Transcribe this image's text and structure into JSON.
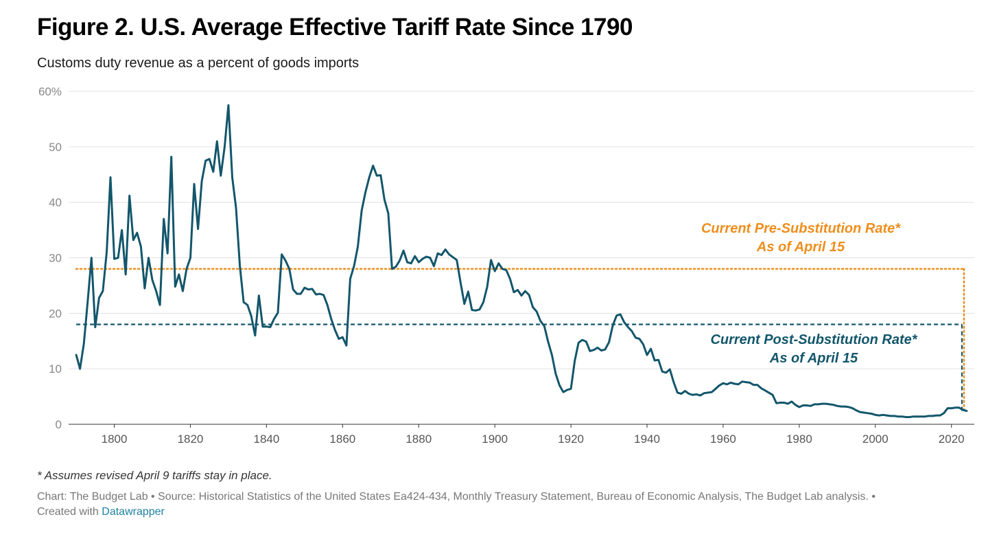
{
  "header": {
    "title": "Figure 2. U.S. Average Effective Tariff Rate Since 1790",
    "subtitle": "Customs duty revenue as a percent of goods imports"
  },
  "footer": {
    "note": "* Assumes revised April 9 tariffs stay in place.",
    "source": "Chart: The Budget Lab • Source: Historical Statistics of the United States Ea424-434, Monthly Treasury Statement, Bureau of Economic Analysis, The Budget Lab analysis. •",
    "created_with": "Created with",
    "tool_link": "Datawrapper"
  },
  "colors": {
    "line": "#13566b",
    "pre_substitution": "#ee8e1c",
    "post_substitution": "#13566b",
    "grid": "#e0e0e0",
    "tick_label": "#888888"
  },
  "chart_data": {
    "type": "line",
    "title": "Figure 2. U.S. Average Effective Tariff Rate Since 1790",
    "subtitle": "Customs duty revenue as a percent of goods imports",
    "xlabel": "",
    "ylabel": "",
    "xlim": [
      1788,
      2026
    ],
    "ylim": [
      0,
      60
    ],
    "x_ticks": [
      1800,
      1820,
      1840,
      1860,
      1880,
      1900,
      1920,
      1940,
      1960,
      1980,
      2000,
      2020
    ],
    "y_ticks": [
      0,
      10,
      20,
      30,
      40,
      50,
      60
    ],
    "y_tick_labels": [
      "0",
      "10",
      "20",
      "30",
      "40",
      "50",
      "60%"
    ],
    "grid": "horizontal",
    "series": [
      {
        "points": [
          [
            1790,
            12.5
          ],
          [
            1791,
            10.0
          ],
          [
            1792,
            14.5
          ],
          [
            1793,
            22.0
          ],
          [
            1794,
            30.0
          ],
          [
            1795,
            17.5
          ],
          [
            1796,
            22.8
          ],
          [
            1797,
            24.0
          ],
          [
            1798,
            31.0
          ],
          [
            1799,
            44.5
          ],
          [
            1800,
            29.8
          ],
          [
            1801,
            30.0
          ],
          [
            1802,
            35.0
          ],
          [
            1803,
            27.0
          ],
          [
            1804,
            41.2
          ],
          [
            1805,
            33.2
          ],
          [
            1806,
            34.5
          ],
          [
            1807,
            32.0
          ],
          [
            1808,
            24.5
          ],
          [
            1809,
            30.0
          ],
          [
            1810,
            26.0
          ],
          [
            1811,
            24.0
          ],
          [
            1812,
            21.5
          ],
          [
            1813,
            37.0
          ],
          [
            1814,
            30.8
          ],
          [
            1815,
            48.2
          ],
          [
            1816,
            24.8
          ],
          [
            1817,
            27.0
          ],
          [
            1818,
            24.0
          ],
          [
            1819,
            28.0
          ],
          [
            1820,
            30.0
          ],
          [
            1821,
            43.3
          ],
          [
            1822,
            35.2
          ],
          [
            1823,
            43.8
          ],
          [
            1824,
            47.5
          ],
          [
            1825,
            47.8
          ],
          [
            1826,
            45.5
          ],
          [
            1827,
            51.0
          ],
          [
            1828,
            44.8
          ],
          [
            1829,
            50.0
          ],
          [
            1830,
            57.5
          ],
          [
            1831,
            44.5
          ],
          [
            1832,
            39.0
          ],
          [
            1833,
            28.5
          ],
          [
            1834,
            22.0
          ],
          [
            1835,
            21.5
          ],
          [
            1836,
            19.5
          ],
          [
            1837,
            16.0
          ],
          [
            1838,
            23.2
          ],
          [
            1839,
            17.6
          ],
          [
            1840,
            17.6
          ],
          [
            1841,
            17.5
          ],
          [
            1842,
            19.0
          ],
          [
            1843,
            20.1
          ],
          [
            1844,
            30.6
          ],
          [
            1845,
            29.5
          ],
          [
            1846,
            28.0
          ],
          [
            1847,
            24.3
          ],
          [
            1848,
            23.5
          ],
          [
            1849,
            23.5
          ],
          [
            1850,
            24.6
          ],
          [
            1851,
            24.3
          ],
          [
            1852,
            24.4
          ],
          [
            1853,
            23.4
          ],
          [
            1854,
            23.5
          ],
          [
            1855,
            23.3
          ],
          [
            1856,
            21.5
          ],
          [
            1857,
            19.0
          ],
          [
            1858,
            17.0
          ],
          [
            1859,
            15.4
          ],
          [
            1860,
            15.7
          ],
          [
            1861,
            14.2
          ],
          [
            1862,
            26.2
          ],
          [
            1863,
            28.5
          ],
          [
            1864,
            32.0
          ],
          [
            1865,
            38.5
          ],
          [
            1866,
            41.8
          ],
          [
            1867,
            44.5
          ],
          [
            1868,
            46.6
          ],
          [
            1869,
            44.8
          ],
          [
            1870,
            44.9
          ],
          [
            1871,
            40.5
          ],
          [
            1872,
            38.0
          ],
          [
            1873,
            28.0
          ],
          [
            1874,
            28.4
          ],
          [
            1875,
            29.5
          ],
          [
            1876,
            31.3
          ],
          [
            1877,
            29.2
          ],
          [
            1878,
            29.0
          ],
          [
            1879,
            30.3
          ],
          [
            1880,
            29.2
          ],
          [
            1881,
            29.8
          ],
          [
            1882,
            30.2
          ],
          [
            1883,
            30.0
          ],
          [
            1884,
            28.5
          ],
          [
            1885,
            30.8
          ],
          [
            1886,
            30.5
          ],
          [
            1887,
            31.5
          ],
          [
            1888,
            30.6
          ],
          [
            1889,
            30.1
          ],
          [
            1890,
            29.6
          ],
          [
            1891,
            25.5
          ],
          [
            1892,
            21.7
          ],
          [
            1893,
            23.9
          ],
          [
            1894,
            20.6
          ],
          [
            1895,
            20.5
          ],
          [
            1896,
            20.7
          ],
          [
            1897,
            22.0
          ],
          [
            1898,
            24.8
          ],
          [
            1899,
            29.6
          ],
          [
            1900,
            27.6
          ],
          [
            1901,
            29.0
          ],
          [
            1902,
            28.0
          ],
          [
            1903,
            27.8
          ],
          [
            1904,
            26.2
          ],
          [
            1905,
            23.8
          ],
          [
            1906,
            24.2
          ],
          [
            1907,
            23.2
          ],
          [
            1908,
            24.0
          ],
          [
            1909,
            23.3
          ],
          [
            1910,
            21.1
          ],
          [
            1911,
            20.3
          ],
          [
            1912,
            18.6
          ],
          [
            1913,
            17.7
          ],
          [
            1914,
            14.9
          ],
          [
            1915,
            12.5
          ],
          [
            1916,
            9.1
          ],
          [
            1917,
            7.0
          ],
          [
            1918,
            5.8
          ],
          [
            1919,
            6.2
          ],
          [
            1920,
            6.4
          ],
          [
            1921,
            11.4
          ],
          [
            1922,
            14.7
          ],
          [
            1923,
            15.2
          ],
          [
            1924,
            14.9
          ],
          [
            1925,
            13.2
          ],
          [
            1926,
            13.4
          ],
          [
            1927,
            13.8
          ],
          [
            1928,
            13.3
          ],
          [
            1929,
            13.5
          ],
          [
            1930,
            14.8
          ],
          [
            1931,
            17.8
          ],
          [
            1932,
            19.6
          ],
          [
            1933,
            19.8
          ],
          [
            1934,
            18.4
          ],
          [
            1935,
            17.5
          ],
          [
            1936,
            16.8
          ],
          [
            1937,
            15.6
          ],
          [
            1938,
            15.4
          ],
          [
            1939,
            14.4
          ],
          [
            1940,
            12.5
          ],
          [
            1941,
            13.6
          ],
          [
            1942,
            11.5
          ],
          [
            1943,
            11.6
          ],
          [
            1944,
            9.5
          ],
          [
            1945,
            9.3
          ],
          [
            1946,
            9.9
          ],
          [
            1947,
            7.6
          ],
          [
            1948,
            5.7
          ],
          [
            1949,
            5.5
          ],
          [
            1950,
            6.0
          ],
          [
            1951,
            5.5
          ],
          [
            1952,
            5.3
          ],
          [
            1953,
            5.4
          ],
          [
            1954,
            5.2
          ],
          [
            1955,
            5.6
          ],
          [
            1956,
            5.7
          ],
          [
            1957,
            5.8
          ],
          [
            1958,
            6.4
          ],
          [
            1959,
            7.0
          ],
          [
            1960,
            7.4
          ],
          [
            1961,
            7.2
          ],
          [
            1962,
            7.5
          ],
          [
            1963,
            7.3
          ],
          [
            1964,
            7.2
          ],
          [
            1965,
            7.7
          ],
          [
            1966,
            7.6
          ],
          [
            1967,
            7.5
          ],
          [
            1968,
            7.1
          ],
          [
            1969,
            7.1
          ],
          [
            1970,
            6.5
          ],
          [
            1971,
            6.1
          ],
          [
            1972,
            5.7
          ],
          [
            1973,
            5.3
          ],
          [
            1974,
            3.8
          ],
          [
            1975,
            3.9
          ],
          [
            1976,
            3.9
          ],
          [
            1977,
            3.7
          ],
          [
            1978,
            4.1
          ],
          [
            1979,
            3.5
          ],
          [
            1980,
            3.1
          ],
          [
            1981,
            3.4
          ],
          [
            1982,
            3.4
          ],
          [
            1983,
            3.3
          ],
          [
            1984,
            3.6
          ],
          [
            1985,
            3.6
          ],
          [
            1986,
            3.7
          ],
          [
            1987,
            3.7
          ],
          [
            1988,
            3.6
          ],
          [
            1989,
            3.5
          ],
          [
            1990,
            3.3
          ],
          [
            1991,
            3.2
          ],
          [
            1992,
            3.2
          ],
          [
            1993,
            3.1
          ],
          [
            1994,
            2.9
          ],
          [
            1995,
            2.5
          ],
          [
            1996,
            2.2
          ],
          [
            1997,
            2.1
          ],
          [
            1998,
            2.0
          ],
          [
            1999,
            1.9
          ],
          [
            2000,
            1.7
          ],
          [
            2001,
            1.6
          ],
          [
            2002,
            1.7
          ],
          [
            2003,
            1.6
          ],
          [
            2004,
            1.5
          ],
          [
            2005,
            1.5
          ],
          [
            2006,
            1.4
          ],
          [
            2007,
            1.4
          ],
          [
            2008,
            1.3
          ],
          [
            2009,
            1.3
          ],
          [
            2010,
            1.4
          ],
          [
            2011,
            1.4
          ],
          [
            2012,
            1.4
          ],
          [
            2013,
            1.4
          ],
          [
            2014,
            1.5
          ],
          [
            2015,
            1.5
          ],
          [
            2016,
            1.6
          ],
          [
            2017,
            1.6
          ],
          [
            2018,
            2.0
          ],
          [
            2019,
            2.9
          ],
          [
            2020,
            2.9
          ],
          [
            2021,
            3.0
          ],
          [
            2022,
            3.0
          ],
          [
            2023,
            2.6
          ],
          [
            2024,
            2.4
          ]
        ]
      }
    ],
    "reference_lines": [
      {
        "value": 28.0,
        "label_line1": "Current Pre-Substitution Rate*",
        "label_line2": "As of April 15",
        "style": "dotted",
        "color": "#ee8e1c"
      },
      {
        "value": 18.0,
        "label_line1": "Current Post-Substitution Rate*",
        "label_line2": "As of April 15",
        "style": "dashed",
        "color": "#13566b"
      }
    ]
  }
}
